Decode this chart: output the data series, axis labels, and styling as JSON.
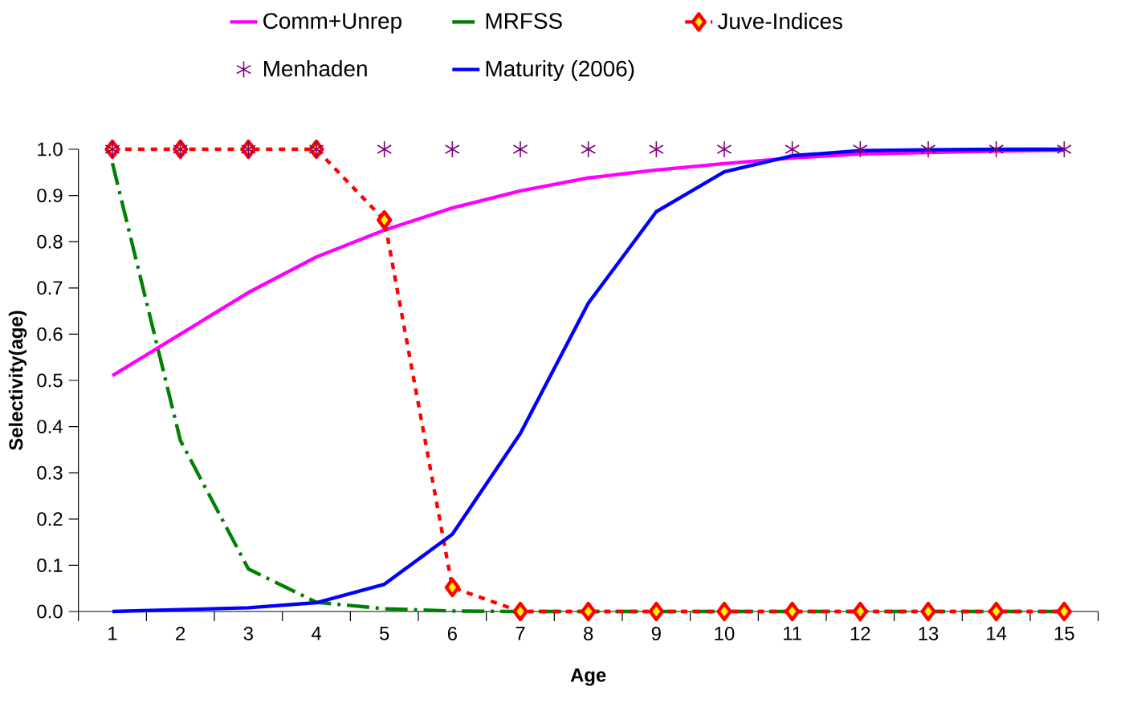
{
  "chart_data": {
    "type": "line",
    "xlabel": "Age",
    "ylabel": "Selectivity(age)",
    "categories": [
      "1",
      "2",
      "3",
      "4",
      "5",
      "6",
      "7",
      "8",
      "9",
      "10",
      "11",
      "12",
      "13",
      "14",
      "15"
    ],
    "ylim": [
      0,
      1
    ],
    "yticks": [
      {
        "value": 0,
        "label": "0.0"
      },
      {
        "value": 0.1,
        "label": "0.1"
      },
      {
        "value": 0.2,
        "label": "0.2"
      },
      {
        "value": 0.3,
        "label": "0.3"
      },
      {
        "value": 0.4,
        "label": "0.4"
      },
      {
        "value": 0.5,
        "label": "0.5"
      },
      {
        "value": 0.6,
        "label": "0.6"
      },
      {
        "value": 0.7,
        "label": "0.7"
      },
      {
        "value": 0.8,
        "label": "0.8"
      },
      {
        "value": 0.9,
        "label": "0.9"
      },
      {
        "value": 1,
        "label": "1.0"
      }
    ],
    "grid": false,
    "legend": "top",
    "series": [
      {
        "name": "Comm+Unrep",
        "type": "line",
        "color": "#ff00ff",
        "line_style": "solid",
        "marker": "none",
        "values": [
          0.51,
          0.6,
          0.69,
          0.767,
          0.825,
          0.873,
          0.91,
          0.938,
          0.955,
          0.969,
          0.981,
          0.99,
          0.993,
          0.996,
          0.998
        ]
      },
      {
        "name": "MRFSS",
        "type": "line",
        "color": "#008000",
        "line_style": "dashed",
        "marker": "none",
        "values": [
          0.97,
          0.37,
          0.092,
          0.02,
          0.006,
          0.001,
          0,
          0,
          0,
          0,
          0,
          0,
          0,
          0,
          0
        ]
      },
      {
        "name": "Juve-Indices",
        "type": "line",
        "color": "#ff0000",
        "line_style": "dotted",
        "marker": "diamond",
        "values": [
          1,
          1,
          1,
          1,
          0.847,
          0.052,
          0,
          0,
          0,
          0,
          0,
          0,
          0,
          0,
          0
        ]
      },
      {
        "name": "Menhaden",
        "type": "scatter",
        "color": "#800080",
        "marker": "cross",
        "values": [
          1,
          1,
          1,
          1,
          1,
          1,
          1,
          1,
          1,
          1,
          1,
          1,
          1,
          1,
          1
        ]
      },
      {
        "name": "Maturity (2006)",
        "type": "line",
        "color": "#0000ff",
        "line_style": "solid",
        "marker": "none",
        "values": [
          0,
          0.004,
          0.008,
          0.019,
          0.059,
          0.167,
          0.385,
          0.667,
          0.865,
          0.951,
          0.986,
          0.997,
          0.999,
          1,
          1
        ]
      }
    ]
  }
}
